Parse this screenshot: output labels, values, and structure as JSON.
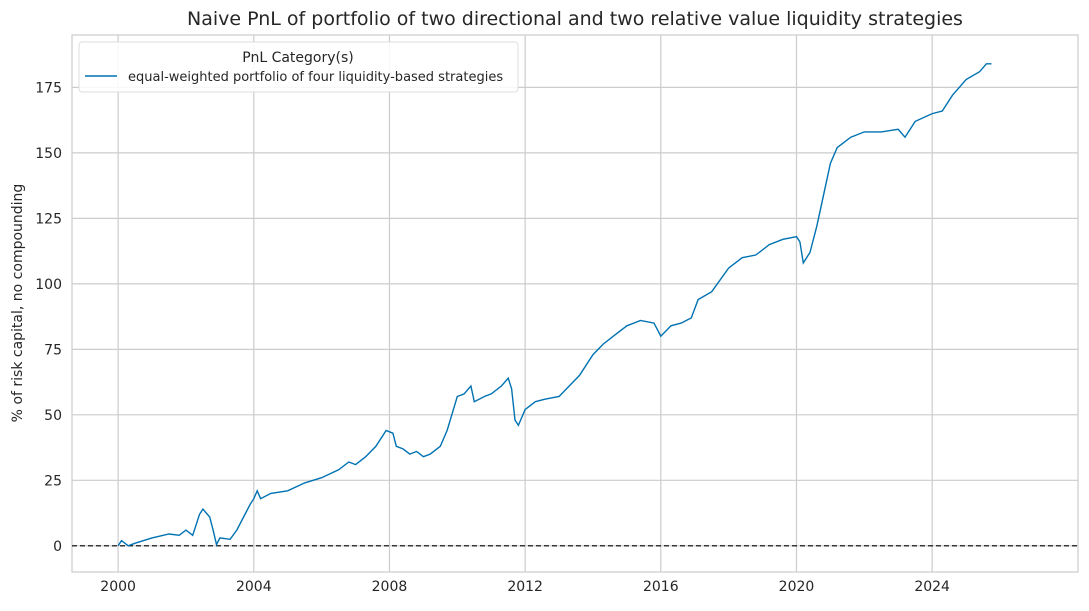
{
  "chart_data": {
    "type": "line",
    "title": "Naive PnL of portfolio of two directional and two relative value liquidity strategies",
    "xlabel": "",
    "ylabel": "% of risk capital, no compounding",
    "xlim": [
      1998.64,
      2028.3
    ],
    "ylim": [
      -10,
      195
    ],
    "x_ticks": [
      "2000",
      "2004",
      "2008",
      "2012",
      "2016",
      "2020",
      "2024"
    ],
    "y_ticks": [
      "0",
      "25",
      "50",
      "75",
      "100",
      "125",
      "150",
      "175"
    ],
    "grid": true,
    "zero_line": {
      "value": 0,
      "style": "dashed",
      "color": "#000000"
    },
    "legend": {
      "title": "PnL Category(s)",
      "placement": "top-left",
      "entries": [
        "equal-weighted portfolio of four liquidity-based strategies"
      ]
    },
    "series": [
      {
        "name": "equal-weighted portfolio of four liquidity-based strategies",
        "color": "#0072b2",
        "x": [
          2000.0,
          2000.1,
          2000.3,
          2000.5,
          2001.0,
          2001.5,
          2001.8,
          2002.0,
          2002.2,
          2002.4,
          2002.5,
          2002.7,
          2002.8,
          2002.9,
          2003.0,
          2003.3,
          2003.5,
          2003.7,
          2003.9,
          2004.0,
          2004.1,
          2004.2,
          2004.5,
          2005.0,
          2005.5,
          2006.0,
          2006.5,
          2006.8,
          2007.0,
          2007.3,
          2007.6,
          2007.9,
          2008.1,
          2008.2,
          2008.4,
          2008.6,
          2008.8,
          2009.0,
          2009.2,
          2009.5,
          2009.7,
          2010.0,
          2010.2,
          2010.4,
          2010.5,
          2010.8,
          2011.0,
          2011.3,
          2011.5,
          2011.6,
          2011.7,
          2011.8,
          2012.0,
          2012.3,
          2012.6,
          2013.0,
          2013.3,
          2013.6,
          2014.0,
          2014.3,
          2014.6,
          2015.0,
          2015.4,
          2015.8,
          2016.0,
          2016.3,
          2016.6,
          2016.9,
          2017.1,
          2017.5,
          2018.0,
          2018.4,
          2018.8,
          2019.2,
          2019.6,
          2020.0,
          2020.1,
          2020.2,
          2020.4,
          2020.6,
          2020.8,
          2021.0,
          2021.2,
          2021.6,
          2022.0,
          2022.5,
          2023.0,
          2023.2,
          2023.5,
          2024.0,
          2024.3,
          2024.6,
          2025.0,
          2025.4,
          2025.6,
          2025.75
        ],
        "y": [
          0,
          2,
          0,
          1,
          3,
          4.5,
          4,
          6,
          4,
          12,
          14,
          11,
          6,
          0.5,
          3,
          2.5,
          6,
          11,
          16,
          18,
          21,
          18,
          20,
          21,
          24,
          26,
          29,
          32,
          31,
          34,
          38,
          44,
          43,
          38,
          37,
          35,
          36,
          34,
          35,
          38,
          44,
          57,
          58,
          61,
          55,
          57,
          58,
          61,
          64,
          60,
          48,
          46,
          52,
          55,
          56,
          57,
          61,
          65,
          73,
          77,
          80,
          84,
          86,
          85,
          80,
          84,
          85,
          87,
          94,
          97,
          106,
          110,
          111,
          115,
          117,
          118,
          116,
          108,
          112,
          122,
          134,
          146,
          152,
          156,
          158,
          158,
          159,
          156,
          162,
          165,
          166,
          172,
          178,
          181,
          184,
          184
        ]
      }
    ]
  }
}
